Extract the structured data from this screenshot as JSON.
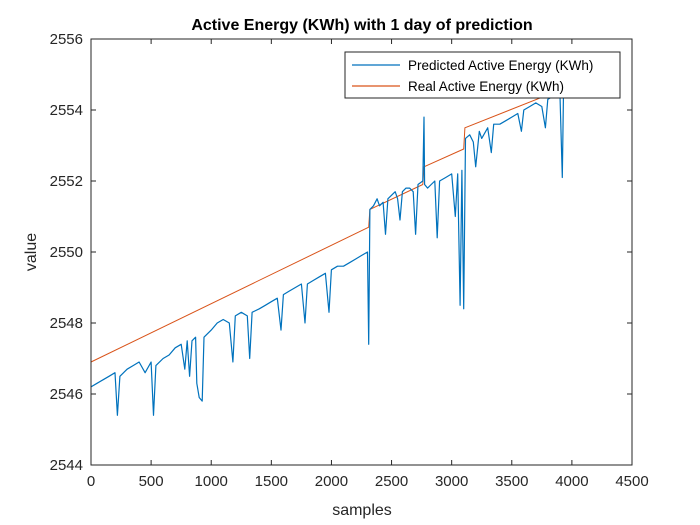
{
  "chart_data": {
    "type": "line",
    "title": "Active Energy (KWh) with 1 day of prediction",
    "xlabel": "samples",
    "ylabel": "value",
    "xlim": [
      0,
      4500
    ],
    "ylim": [
      2544,
      2556
    ],
    "xticks": [
      0,
      500,
      1000,
      1500,
      2000,
      2500,
      3000,
      3500,
      4000,
      4500
    ],
    "yticks": [
      2544,
      2546,
      2548,
      2550,
      2552,
      2554,
      2556
    ],
    "xtick_labels": [
      "0",
      "500",
      "1000",
      "1500",
      "2000",
      "2500",
      "3000",
      "3500",
      "4000",
      "4500"
    ],
    "ytick_labels": [
      "2544",
      "2546",
      "2548",
      "2550",
      "2552",
      "2554",
      "2556"
    ],
    "grid": false,
    "legend_position": "top-right",
    "series": [
      {
        "name": "Predicted Active Energy (KWh)",
        "color": "#0072BD",
        "points": [
          [
            0,
            2546.2
          ],
          [
            50,
            2546.3
          ],
          [
            100,
            2546.4
          ],
          [
            150,
            2546.5
          ],
          [
            200,
            2546.6
          ],
          [
            220,
            2545.4
          ],
          [
            240,
            2546.5
          ],
          [
            300,
            2546.7
          ],
          [
            350,
            2546.8
          ],
          [
            400,
            2546.9
          ],
          [
            450,
            2546.6
          ],
          [
            500,
            2546.9
          ],
          [
            520,
            2545.4
          ],
          [
            540,
            2546.8
          ],
          [
            600,
            2547.0
          ],
          [
            650,
            2547.1
          ],
          [
            700,
            2547.3
          ],
          [
            750,
            2547.4
          ],
          [
            780,
            2546.7
          ],
          [
            800,
            2547.5
          ],
          [
            820,
            2546.5
          ],
          [
            840,
            2547.5
          ],
          [
            870,
            2547.6
          ],
          [
            880,
            2546.3
          ],
          [
            900,
            2545.9
          ],
          [
            925,
            2545.8
          ],
          [
            940,
            2547.6
          ],
          [
            1000,
            2547.8
          ],
          [
            1050,
            2548.0
          ],
          [
            1100,
            2548.1
          ],
          [
            1150,
            2548.0
          ],
          [
            1180,
            2546.9
          ],
          [
            1200,
            2548.2
          ],
          [
            1250,
            2548.3
          ],
          [
            1300,
            2548.2
          ],
          [
            1320,
            2547.0
          ],
          [
            1340,
            2548.3
          ],
          [
            1400,
            2548.4
          ],
          [
            1450,
            2548.5
          ],
          [
            1500,
            2548.6
          ],
          [
            1550,
            2548.7
          ],
          [
            1580,
            2547.8
          ],
          [
            1600,
            2548.8
          ],
          [
            1650,
            2548.9
          ],
          [
            1700,
            2549.0
          ],
          [
            1750,
            2549.1
          ],
          [
            1780,
            2548.0
          ],
          [
            1800,
            2549.1
          ],
          [
            1850,
            2549.2
          ],
          [
            1900,
            2549.3
          ],
          [
            1950,
            2549.4
          ],
          [
            1980,
            2548.3
          ],
          [
            2000,
            2549.5
          ],
          [
            2050,
            2549.6
          ],
          [
            2100,
            2549.6
          ],
          [
            2150,
            2549.7
          ],
          [
            2200,
            2549.8
          ],
          [
            2250,
            2549.9
          ],
          [
            2300,
            2550.0
          ],
          [
            2310,
            2547.4
          ],
          [
            2320,
            2551.2
          ],
          [
            2350,
            2551.3
          ],
          [
            2380,
            2551.5
          ],
          [
            2400,
            2551.3
          ],
          [
            2430,
            2551.4
          ],
          [
            2450,
            2550.5
          ],
          [
            2470,
            2551.5
          ],
          [
            2500,
            2551.6
          ],
          [
            2530,
            2551.7
          ],
          [
            2550,
            2551.5
          ],
          [
            2570,
            2550.9
          ],
          [
            2590,
            2551.7
          ],
          [
            2620,
            2551.8
          ],
          [
            2650,
            2551.8
          ],
          [
            2680,
            2551.7
          ],
          [
            2700,
            2550.5
          ],
          [
            2720,
            2551.9
          ],
          [
            2760,
            2552.0
          ],
          [
            2770,
            2553.8
          ],
          [
            2775,
            2551.9
          ],
          [
            2800,
            2551.8
          ],
          [
            2830,
            2551.9
          ],
          [
            2860,
            2552.0
          ],
          [
            2880,
            2550.4
          ],
          [
            2900,
            2552.0
          ],
          [
            2950,
            2552.1
          ],
          [
            3000,
            2552.2
          ],
          [
            3030,
            2551.0
          ],
          [
            3050,
            2552.2
          ],
          [
            3070,
            2548.5
          ],
          [
            3085,
            2552.3
          ],
          [
            3100,
            2548.4
          ],
          [
            3115,
            2553.2
          ],
          [
            3150,
            2553.3
          ],
          [
            3180,
            2553.1
          ],
          [
            3200,
            2552.4
          ],
          [
            3230,
            2553.4
          ],
          [
            3250,
            2553.2
          ],
          [
            3300,
            2553.5
          ],
          [
            3330,
            2552.8
          ],
          [
            3350,
            2553.6
          ],
          [
            3400,
            2553.6
          ],
          [
            3450,
            2553.7
          ],
          [
            3500,
            2553.8
          ],
          [
            3550,
            2553.9
          ],
          [
            3580,
            2553.4
          ],
          [
            3600,
            2554.0
          ],
          [
            3650,
            2554.1
          ],
          [
            3700,
            2554.2
          ],
          [
            3750,
            2554.1
          ],
          [
            3780,
            2553.5
          ],
          [
            3800,
            2554.3
          ],
          [
            3850,
            2554.4
          ],
          [
            3900,
            2554.5
          ],
          [
            3920,
            2552.1
          ],
          [
            3930,
            2554.5
          ]
        ]
      },
      {
        "name": "Real Active Energy (KWh)",
        "color": "#D95319",
        "points": [
          [
            0,
            2546.9
          ],
          [
            2310,
            2550.7
          ],
          [
            2320,
            2551.2
          ],
          [
            2760,
            2551.9
          ],
          [
            2770,
            2552.4
          ],
          [
            3100,
            2552.9
          ],
          [
            3110,
            2553.5
          ],
          [
            3930,
            2554.6
          ]
        ]
      }
    ]
  }
}
